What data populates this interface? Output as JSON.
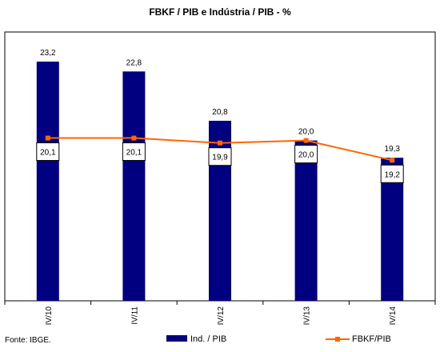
{
  "chart_data": {
    "type": "bar",
    "title": "FBKF / PIB e Indústria / PIB - %",
    "categories": [
      "IV/10",
      "IV/11",
      "IV/12",
      "IV/13",
      "IV/14"
    ],
    "series": [
      {
        "name": "Ind. / PIB",
        "type": "bar",
        "values": [
          23.2,
          22.8,
          20.8,
          20.0,
          19.3
        ],
        "labels": [
          "23,2",
          "22,8",
          "20,8",
          "20,0",
          "19,3"
        ],
        "color": "#000080"
      },
      {
        "name": "FBKF/PIB",
        "type": "line",
        "values": [
          20.1,
          20.1,
          19.9,
          20.0,
          19.2
        ],
        "labels": [
          "20,1",
          "20,1",
          "19,9",
          "20,0",
          "19,2"
        ],
        "color": "#FF6600"
      }
    ],
    "ylim": [
      13.5,
      24.4
    ],
    "grid": false,
    "legend_position": "bottom",
    "source": "Fonte: IBGE."
  }
}
